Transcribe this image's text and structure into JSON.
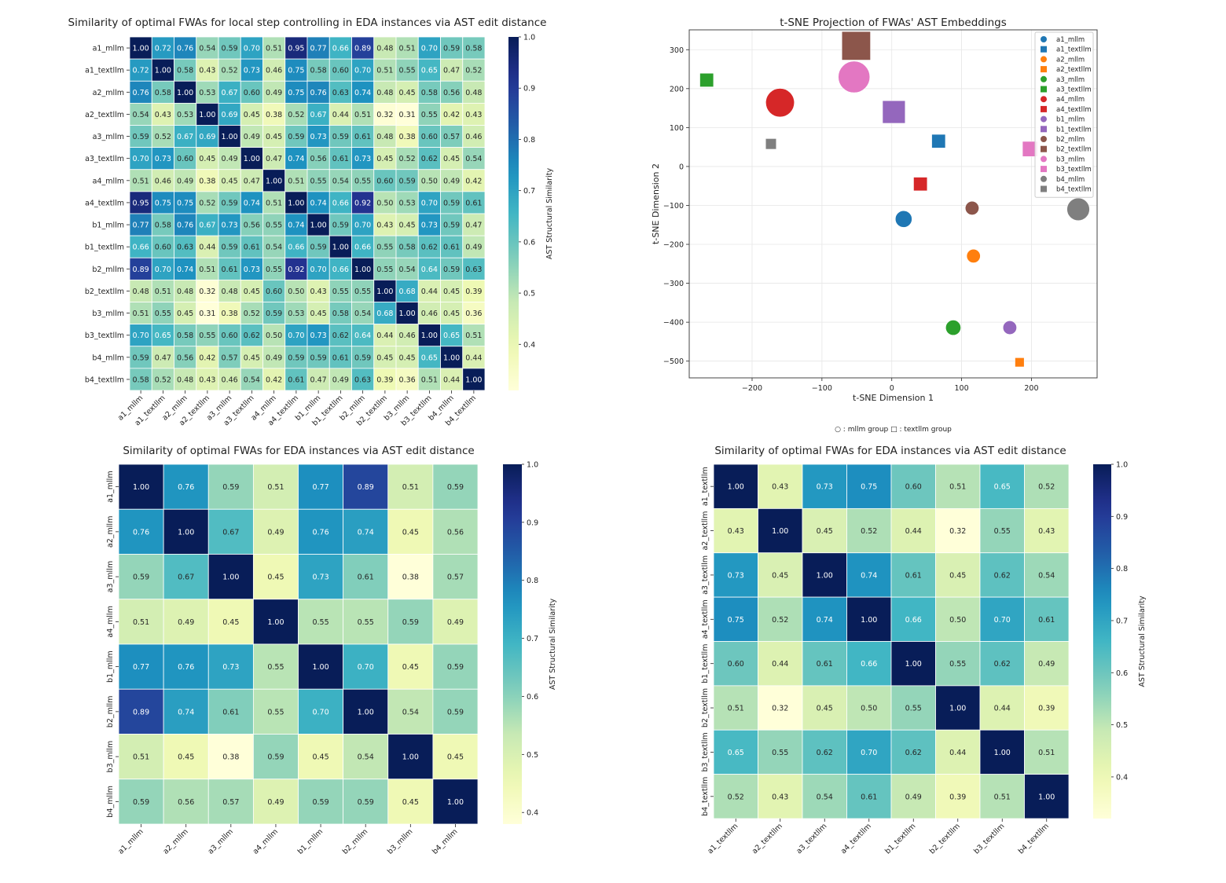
{
  "chart_data": [
    {
      "type": "heatmap",
      "title": "Similarity of optimal FWAs for local step controlling in EDA instances via AST edit distance",
      "labels": [
        "a1_mllm",
        "a1_textllm",
        "a2_mllm",
        "a2_textllm",
        "a3_mllm",
        "a3_textllm",
        "a4_mllm",
        "a4_textllm",
        "b1_mllm",
        "b1_textllm",
        "b2_mllm",
        "b2_textllm",
        "b3_mllm",
        "b3_textllm",
        "b4_mllm",
        "b4_textllm"
      ],
      "values": [
        [
          1.0,
          0.72,
          0.76,
          0.54,
          0.59,
          0.7,
          0.51,
          0.95,
          0.77,
          0.66,
          0.89,
          0.48,
          0.51,
          0.7,
          0.59,
          0.58
        ],
        [
          0.72,
          1.0,
          0.58,
          0.43,
          0.52,
          0.73,
          0.46,
          0.75,
          0.58,
          0.6,
          0.7,
          0.51,
          0.55,
          0.65,
          0.47,
          0.52
        ],
        [
          0.76,
          0.58,
          1.0,
          0.53,
          0.67,
          0.6,
          0.49,
          0.75,
          0.76,
          0.63,
          0.74,
          0.48,
          0.45,
          0.58,
          0.56,
          0.48
        ],
        [
          0.54,
          0.43,
          0.53,
          1.0,
          0.69,
          0.45,
          0.38,
          0.52,
          0.67,
          0.44,
          0.51,
          0.32,
          0.31,
          0.55,
          0.42,
          0.43
        ],
        [
          0.59,
          0.52,
          0.67,
          0.69,
          1.0,
          0.49,
          0.45,
          0.59,
          0.73,
          0.59,
          0.61,
          0.48,
          0.38,
          0.6,
          0.57,
          0.46
        ],
        [
          0.7,
          0.73,
          0.6,
          0.45,
          0.49,
          1.0,
          0.47,
          0.74,
          0.56,
          0.61,
          0.73,
          0.45,
          0.52,
          0.62,
          0.45,
          0.54
        ],
        [
          0.51,
          0.46,
          0.49,
          0.38,
          0.45,
          0.47,
          1.0,
          0.51,
          0.55,
          0.54,
          0.55,
          0.6,
          0.59,
          0.5,
          0.49,
          0.42
        ],
        [
          0.95,
          0.75,
          0.75,
          0.52,
          0.59,
          0.74,
          0.51,
          1.0,
          0.74,
          0.66,
          0.92,
          0.5,
          0.53,
          0.7,
          0.59,
          0.61
        ],
        [
          0.77,
          0.58,
          0.76,
          0.67,
          0.73,
          0.56,
          0.55,
          0.74,
          1.0,
          0.59,
          0.7,
          0.43,
          0.45,
          0.73,
          0.59,
          0.47
        ],
        [
          0.66,
          0.6,
          0.63,
          0.44,
          0.59,
          0.61,
          0.54,
          0.66,
          0.59,
          1.0,
          0.66,
          0.55,
          0.58,
          0.62,
          0.61,
          0.49
        ],
        [
          0.89,
          0.7,
          0.74,
          0.51,
          0.61,
          0.73,
          0.55,
          0.92,
          0.7,
          0.66,
          1.0,
          0.55,
          0.54,
          0.64,
          0.59,
          0.63
        ],
        [
          0.48,
          0.51,
          0.48,
          0.32,
          0.48,
          0.45,
          0.6,
          0.5,
          0.43,
          0.55,
          0.55,
          1.0,
          0.68,
          0.44,
          0.45,
          0.39
        ],
        [
          0.51,
          0.55,
          0.45,
          0.31,
          0.38,
          0.52,
          0.59,
          0.53,
          0.45,
          0.58,
          0.54,
          0.68,
          1.0,
          0.46,
          0.45,
          0.36
        ],
        [
          0.7,
          0.65,
          0.58,
          0.55,
          0.6,
          0.62,
          0.5,
          0.7,
          0.73,
          0.62,
          0.64,
          0.44,
          0.46,
          1.0,
          0.65,
          0.51
        ],
        [
          0.59,
          0.47,
          0.56,
          0.42,
          0.57,
          0.45,
          0.49,
          0.59,
          0.59,
          0.61,
          0.59,
          0.45,
          0.45,
          0.65,
          1.0,
          0.44
        ],
        [
          0.58,
          0.52,
          0.48,
          0.43,
          0.46,
          0.54,
          0.42,
          0.61,
          0.47,
          0.49,
          0.63,
          0.39,
          0.36,
          0.51,
          0.44,
          1.0
        ]
      ],
      "colormap": "YlGnBu",
      "vmin": 0.31,
      "vmax": 1.0,
      "colorbar_label": "AST Structural Similarity",
      "colorbar_ticks": [
        0.4,
        0.5,
        0.6,
        0.7,
        0.8,
        0.9,
        1.0
      ]
    },
    {
      "type": "scatter",
      "title": "t-SNE Projection of FWAs' AST Embeddings",
      "xlabel": "t-SNE Dimension 1",
      "ylabel": "t-SNE Dimension 2",
      "xlim": [
        -290,
        294
      ],
      "ylim": [
        -543,
        351
      ],
      "xticks": [
        -200,
        -100,
        0,
        100,
        200
      ],
      "yticks": [
        -500,
        -400,
        -300,
        -200,
        -100,
        0,
        100,
        200,
        300
      ],
      "grid": true,
      "legend_position": "top-right",
      "note": "○ : mllm group   □ : textllm group",
      "points": [
        {
          "name": "a1_mllm",
          "marker": "circle",
          "color": "#1f77b4",
          "x": 17,
          "y": -135,
          "size": 4
        },
        {
          "name": "a1_textllm",
          "marker": "square",
          "color": "#1f77b4",
          "x": 67,
          "y": 65,
          "size": 3
        },
        {
          "name": "a2_mllm",
          "marker": "circle",
          "color": "#ff7f0e",
          "x": 117,
          "y": -230,
          "size": 3
        },
        {
          "name": "a2_textllm",
          "marker": "square",
          "color": "#ff7f0e",
          "x": 183,
          "y": -503,
          "size": 1.5
        },
        {
          "name": "a3_mllm",
          "marker": "circle",
          "color": "#2ca02c",
          "x": 88,
          "y": -414,
          "size": 3.5
        },
        {
          "name": "a3_textllm",
          "marker": "square",
          "color": "#2ca02c",
          "x": -265,
          "y": 222,
          "size": 3
        },
        {
          "name": "a4_mllm",
          "marker": "circle",
          "color": "#d62728",
          "x": -160,
          "y": 164,
          "size": 8
        },
        {
          "name": "a4_textllm",
          "marker": "square",
          "color": "#d62728",
          "x": 41,
          "y": -45,
          "size": 3
        },
        {
          "name": "b1_mllm",
          "marker": "circle",
          "color": "#9467bd",
          "x": 169,
          "y": -414,
          "size": 3
        },
        {
          "name": "b1_textllm",
          "marker": "square",
          "color": "#9467bd",
          "x": 3,
          "y": 140,
          "size": 6
        },
        {
          "name": "b2_mllm",
          "marker": "circle",
          "color": "#8c564b",
          "x": 115,
          "y": -107,
          "size": 3
        },
        {
          "name": "b2_textllm",
          "marker": "square",
          "color": "#8c564b",
          "x": -51,
          "y": 310,
          "size": 8
        },
        {
          "name": "b3_mllm",
          "marker": "circle",
          "color": "#e377c2",
          "x": -54,
          "y": 230,
          "size": 9
        },
        {
          "name": "b3_textllm",
          "marker": "square",
          "color": "#e377c2",
          "x": 198,
          "y": 45,
          "size": 3.5
        },
        {
          "name": "b4_mllm",
          "marker": "circle",
          "color": "#7f7f7f",
          "x": 267,
          "y": -110,
          "size": 6
        },
        {
          "name": "b4_textllm",
          "marker": "square",
          "color": "#7f7f7f",
          "x": -173,
          "y": 58,
          "size": 2
        }
      ]
    },
    {
      "type": "heatmap",
      "title": "Similarity of optimal FWAs for EDA instances via AST edit distance",
      "labels": [
        "a1_mllm",
        "a2_mllm",
        "a3_mllm",
        "a4_mllm",
        "b1_mllm",
        "b2_mllm",
        "b3_mllm",
        "b4_mllm"
      ],
      "values": [
        [
          1.0,
          0.76,
          0.59,
          0.51,
          0.77,
          0.89,
          0.51,
          0.59
        ],
        [
          0.76,
          1.0,
          0.67,
          0.49,
          0.76,
          0.74,
          0.45,
          0.56
        ],
        [
          0.59,
          0.67,
          1.0,
          0.45,
          0.73,
          0.61,
          0.38,
          0.57
        ],
        [
          0.51,
          0.49,
          0.45,
          1.0,
          0.55,
          0.55,
          0.59,
          0.49
        ],
        [
          0.77,
          0.76,
          0.73,
          0.55,
          1.0,
          0.7,
          0.45,
          0.59
        ],
        [
          0.89,
          0.74,
          0.61,
          0.55,
          0.7,
          1.0,
          0.54,
          0.59
        ],
        [
          0.51,
          0.45,
          0.38,
          0.59,
          0.45,
          0.54,
          1.0,
          0.45
        ],
        [
          0.59,
          0.56,
          0.57,
          0.49,
          0.59,
          0.59,
          0.45,
          1.0
        ]
      ],
      "colormap": "YlGnBu",
      "vmin": 0.38,
      "vmax": 1.0,
      "colorbar_label": "AST Structural Similarity",
      "colorbar_ticks": [
        0.4,
        0.5,
        0.6,
        0.7,
        0.8,
        0.9,
        1.0
      ]
    },
    {
      "type": "heatmap",
      "title": "Similarity of optimal FWAs for EDA instances via AST edit distance",
      "labels": [
        "a1_textllm",
        "a2_textllm",
        "a3_textllm",
        "a4_textllm",
        "b1_textllm",
        "b2_textllm",
        "b3_textllm",
        "b4_textllm"
      ],
      "values": [
        [
          1.0,
          0.43,
          0.73,
          0.75,
          0.6,
          0.51,
          0.65,
          0.52
        ],
        [
          0.43,
          1.0,
          0.45,
          0.52,
          0.44,
          0.32,
          0.55,
          0.43
        ],
        [
          0.73,
          0.45,
          1.0,
          0.74,
          0.61,
          0.45,
          0.62,
          0.54
        ],
        [
          0.75,
          0.52,
          0.74,
          1.0,
          0.66,
          0.5,
          0.7,
          0.61
        ],
        [
          0.6,
          0.44,
          0.61,
          0.66,
          1.0,
          0.55,
          0.62,
          0.49
        ],
        [
          0.51,
          0.32,
          0.45,
          0.5,
          0.55,
          1.0,
          0.44,
          0.39
        ],
        [
          0.65,
          0.55,
          0.62,
          0.7,
          0.62,
          0.44,
          1.0,
          0.51
        ],
        [
          0.52,
          0.43,
          0.54,
          0.61,
          0.49,
          0.39,
          0.51,
          1.0
        ]
      ],
      "colormap": "YlGnBu",
      "vmin": 0.32,
      "vmax": 1.0,
      "colorbar_label": "AST Structural Similarity",
      "colorbar_ticks": [
        0.4,
        0.5,
        0.6,
        0.7,
        0.8,
        0.9,
        1.0
      ]
    }
  ]
}
